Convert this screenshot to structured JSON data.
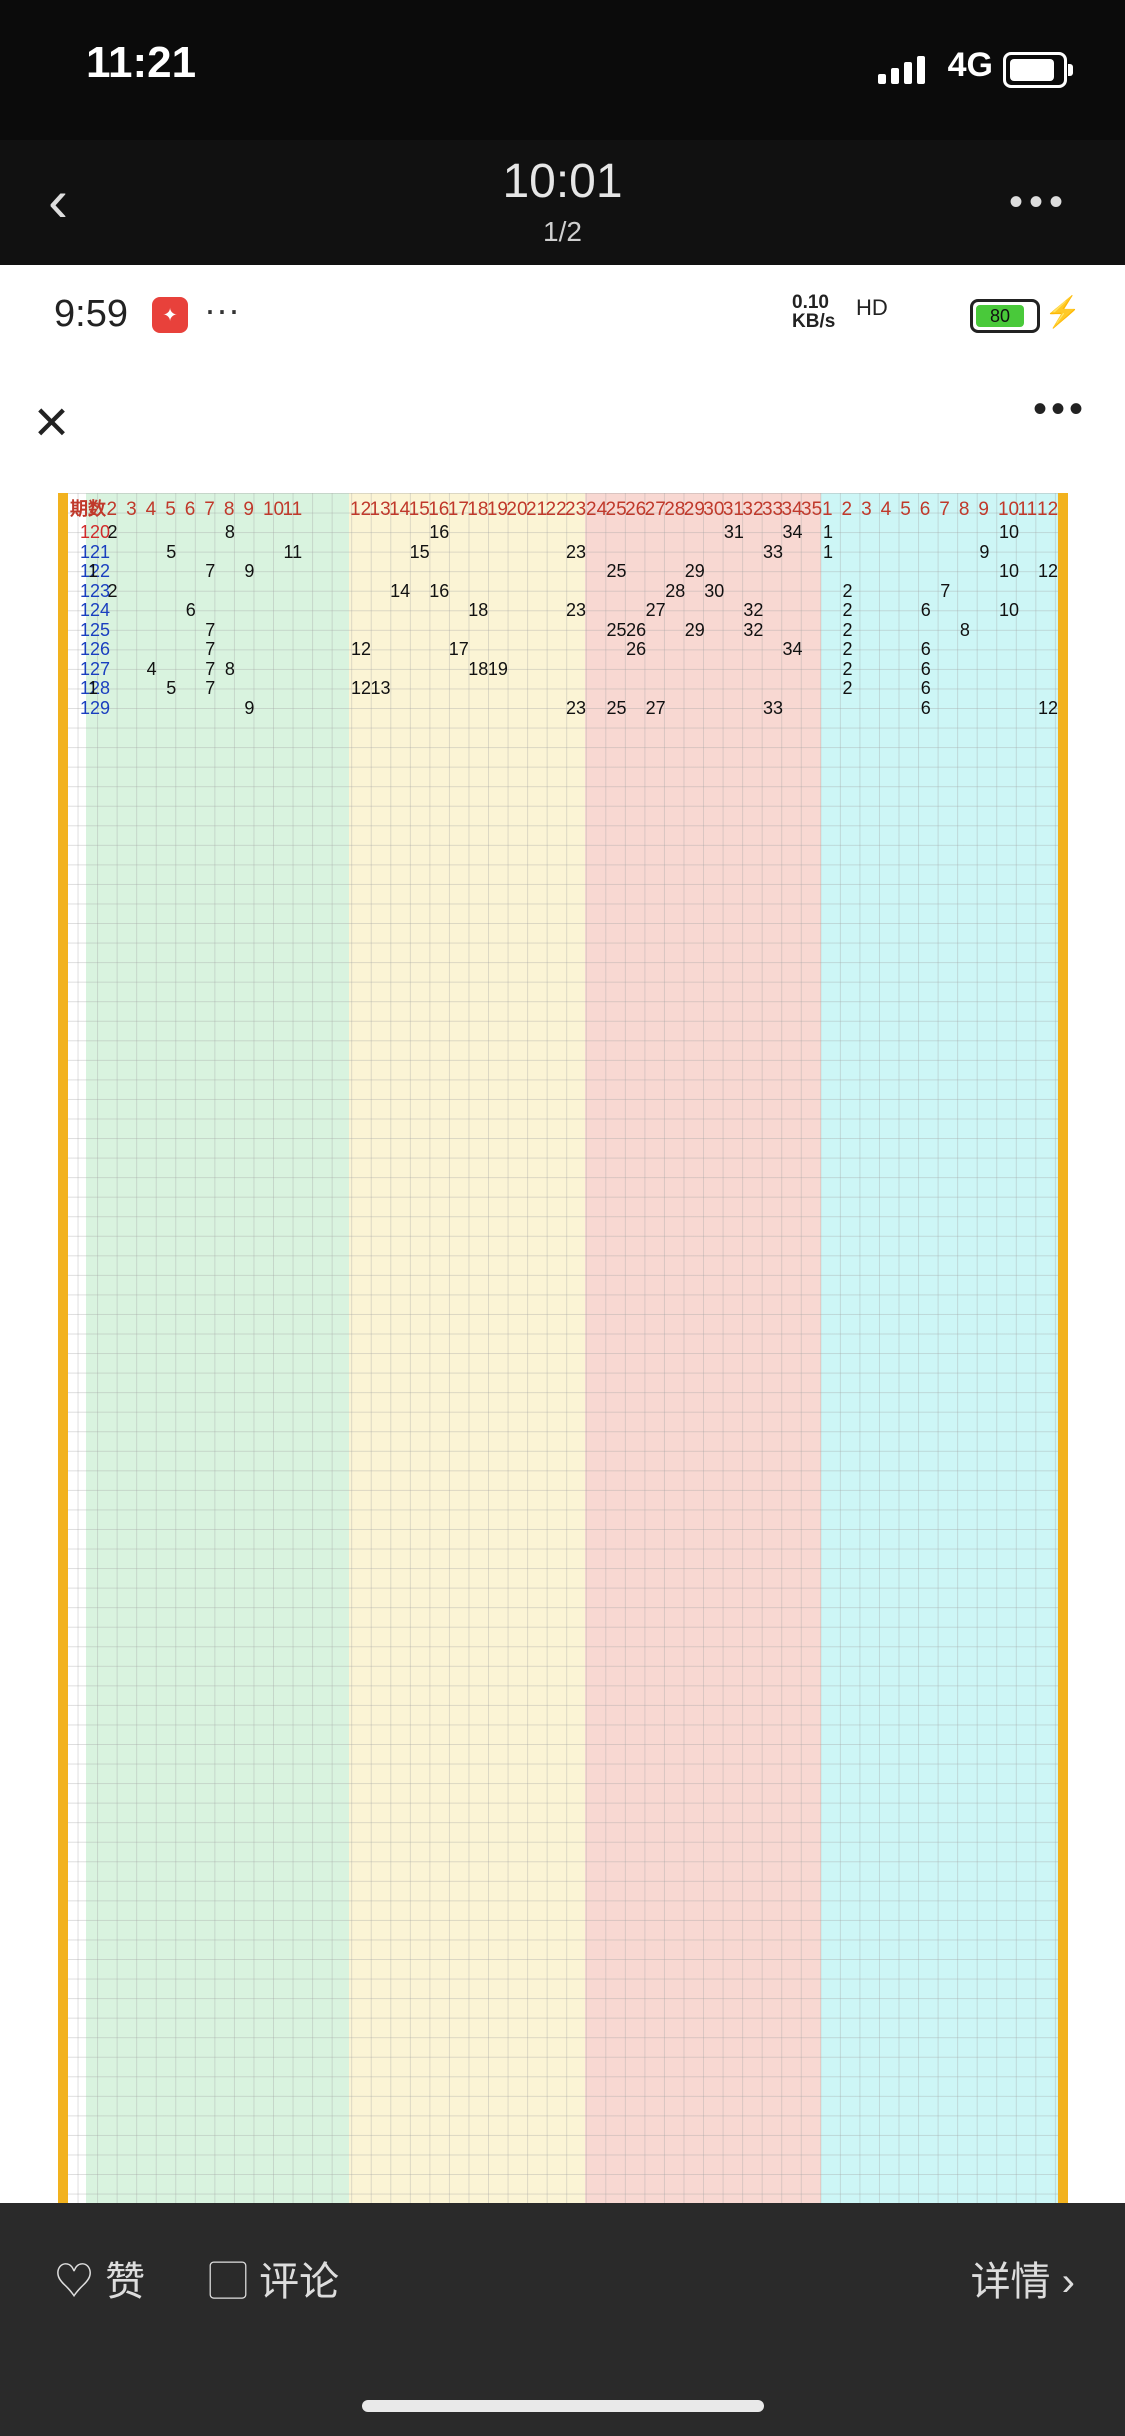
{
  "status": {
    "time": "11:21",
    "network": "4G"
  },
  "topbar": {
    "title": "10:01",
    "counter": "1/2"
  },
  "photo_status": {
    "time": "9:59",
    "dots": "···",
    "speed_top": "0.10",
    "speed_bottom": "KB/s",
    "signal": "HD",
    "battery": "80"
  },
  "chart_header": {
    "label": "期数"
  },
  "zones": {
    "a": {
      "cols": [
        "1",
        "2",
        "3",
        "4",
        "5",
        "6",
        "7",
        "8",
        "9",
        "10",
        "11"
      ]
    },
    "b": {
      "cols": [
        "12",
        "13",
        "14",
        "15",
        "16",
        "17",
        "18",
        "19",
        "20",
        "21",
        "22",
        "23"
      ]
    },
    "c": {
      "cols": [
        "24",
        "25",
        "26",
        "27",
        "28",
        "29",
        "30",
        "31",
        "32",
        "33",
        "34",
        "35"
      ]
    },
    "d": {
      "cols": [
        "1",
        "2",
        "3",
        "4",
        "5",
        "6",
        "7",
        "8",
        "9",
        "10",
        "11",
        "12"
      ]
    }
  },
  "rows": [
    {
      "id": "120",
      "a": [
        2,
        8
      ],
      "b": [
        16
      ],
      "c": [
        31,
        34
      ],
      "d": [
        1,
        10
      ]
    },
    {
      "id": "121",
      "a": [
        5,
        11
      ],
      "b": [
        15,
        23
      ],
      "c": [
        33
      ],
      "d": [
        1,
        9
      ]
    },
    {
      "id": "122",
      "a": [
        1,
        7,
        9
      ],
      "b": [],
      "c": [
        25,
        29
      ],
      "d": [
        10,
        12
      ]
    },
    {
      "id": "123",
      "a": [
        2
      ],
      "b": [
        14,
        16
      ],
      "c": [
        28,
        30
      ],
      "d": [
        2,
        7
      ]
    },
    {
      "id": "124",
      "a": [
        6
      ],
      "b": [
        18,
        23
      ],
      "c": [
        27,
        32
      ],
      "d": [
        2,
        6,
        10
      ]
    },
    {
      "id": "125",
      "a": [
        7
      ],
      "b": [],
      "c": [
        25,
        26,
        29,
        32
      ],
      "d": [
        2,
        8
      ]
    },
    {
      "id": "126",
      "a": [
        7
      ],
      "b": [
        12,
        17
      ],
      "c": [
        26,
        34
      ],
      "d": [
        2,
        6
      ]
    },
    {
      "id": "127",
      "a": [
        4,
        7,
        8
      ],
      "b": [
        18,
        19
      ],
      "c": [],
      "d": [
        2,
        6
      ]
    },
    {
      "id": "128",
      "a": [
        1,
        5,
        7
      ],
      "b": [
        12,
        13
      ],
      "c": [],
      "d": [
        2,
        6
      ]
    },
    {
      "id": "129",
      "a": [
        9
      ],
      "b": [
        23
      ],
      "c": [
        25,
        27,
        33
      ],
      "d": [
        6,
        12
      ]
    }
  ],
  "bottom": {
    "like": "♡ 赞",
    "comment": "▢ 评论",
    "details": "详情 ›"
  }
}
